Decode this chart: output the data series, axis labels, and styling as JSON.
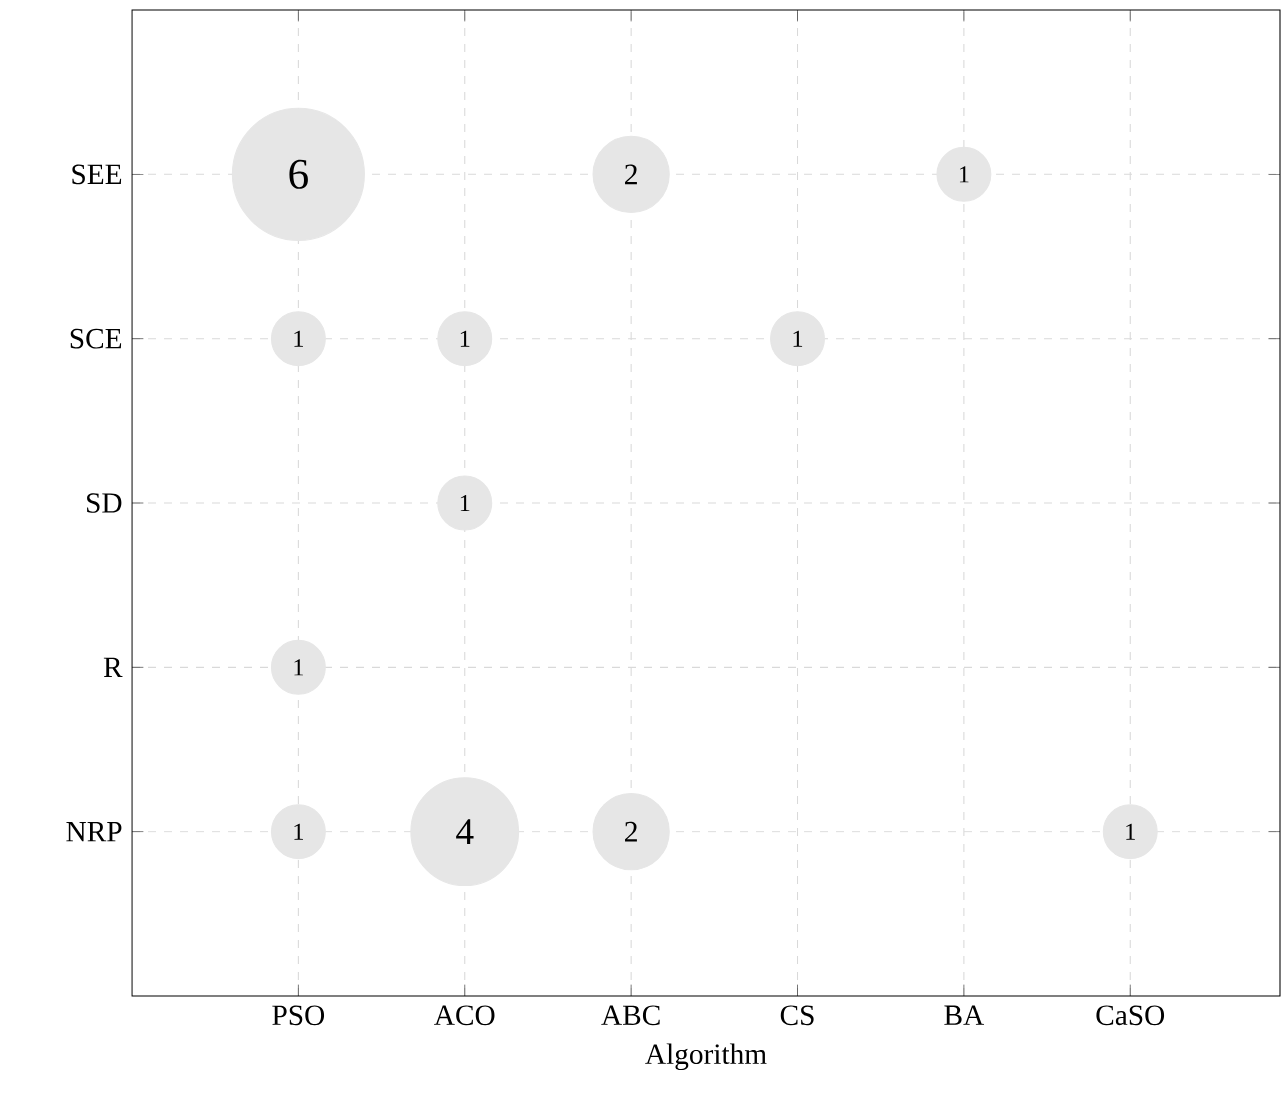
{
  "chart_data": {
    "type": "heatmap",
    "xlabel": "Algorithm",
    "categories": [
      "PSO",
      "ACO",
      "ABC",
      "CS",
      "BA",
      "CaSO"
    ],
    "y_categories": [
      "SEE",
      "SCE",
      "SD",
      "R",
      "NRP"
    ],
    "grid": true,
    "data_labels": true,
    "color": "#e6e6e6",
    "cells": [
      [
        6,
        null,
        2,
        null,
        1,
        null
      ],
      [
        1,
        1,
        null,
        1,
        null,
        null
      ],
      [
        null,
        1,
        null,
        null,
        null,
        null
      ],
      [
        1,
        null,
        null,
        null,
        null,
        null
      ],
      [
        1,
        4,
        2,
        null,
        null,
        1
      ]
    ]
  }
}
